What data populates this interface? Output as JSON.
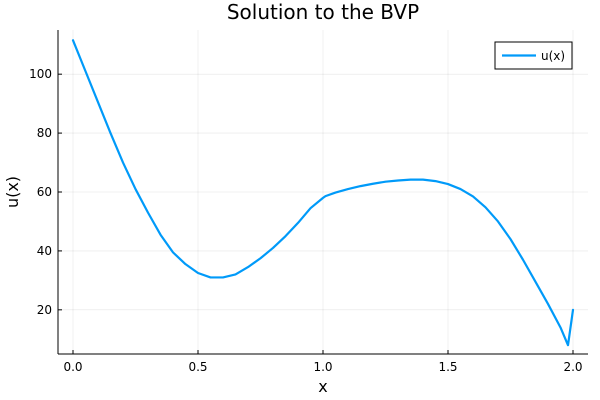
{
  "chart_data": {
    "type": "line",
    "title": "Solution to the BVP",
    "xlabel": "x",
    "ylabel": "u(x)",
    "xlim": [
      -0.06,
      2.06
    ],
    "ylim": [
      5,
      115
    ],
    "xticks": [
      0.0,
      0.5,
      1.0,
      1.5,
      2.0
    ],
    "xtick_labels": [
      "0.0",
      "0.5",
      "1.0",
      "1.5",
      "2.0"
    ],
    "yticks": [
      20,
      40,
      60,
      80,
      100
    ],
    "ytick_labels": [
      "20",
      "40",
      "60",
      "80",
      "100"
    ],
    "grid": true,
    "legend": "top-right",
    "series": [
      {
        "name": "u(x)",
        "color": "#009af9",
        "x": [
          0.0,
          0.05,
          0.1,
          0.15,
          0.2,
          0.25,
          0.3,
          0.35,
          0.4,
          0.45,
          0.5,
          0.55,
          0.6,
          0.65,
          0.7,
          0.75,
          0.8,
          0.85,
          0.9,
          0.95,
          1.0,
          1.01,
          1.05,
          1.1,
          1.15,
          1.2,
          1.25,
          1.3,
          1.35,
          1.4,
          1.45,
          1.5,
          1.55,
          1.6,
          1.65,
          1.7,
          1.75,
          1.8,
          1.85,
          1.9,
          1.95,
          1.98,
          2.0
        ],
        "y": [
          111.5,
          101.0,
          90.5,
          80.0,
          70.0,
          61.0,
          53.0,
          45.5,
          39.5,
          35.5,
          32.5,
          31.0,
          31.0,
          32.0,
          34.5,
          37.5,
          41.0,
          45.0,
          49.5,
          54.5,
          58.0,
          58.6,
          59.8,
          61.0,
          62.0,
          62.8,
          63.5,
          63.9,
          64.2,
          64.2,
          63.7,
          62.7,
          61.0,
          58.5,
          54.8,
          50.0,
          44.0,
          37.0,
          29.5,
          22.0,
          14.0,
          8.0,
          20.0
        ]
      }
    ]
  }
}
